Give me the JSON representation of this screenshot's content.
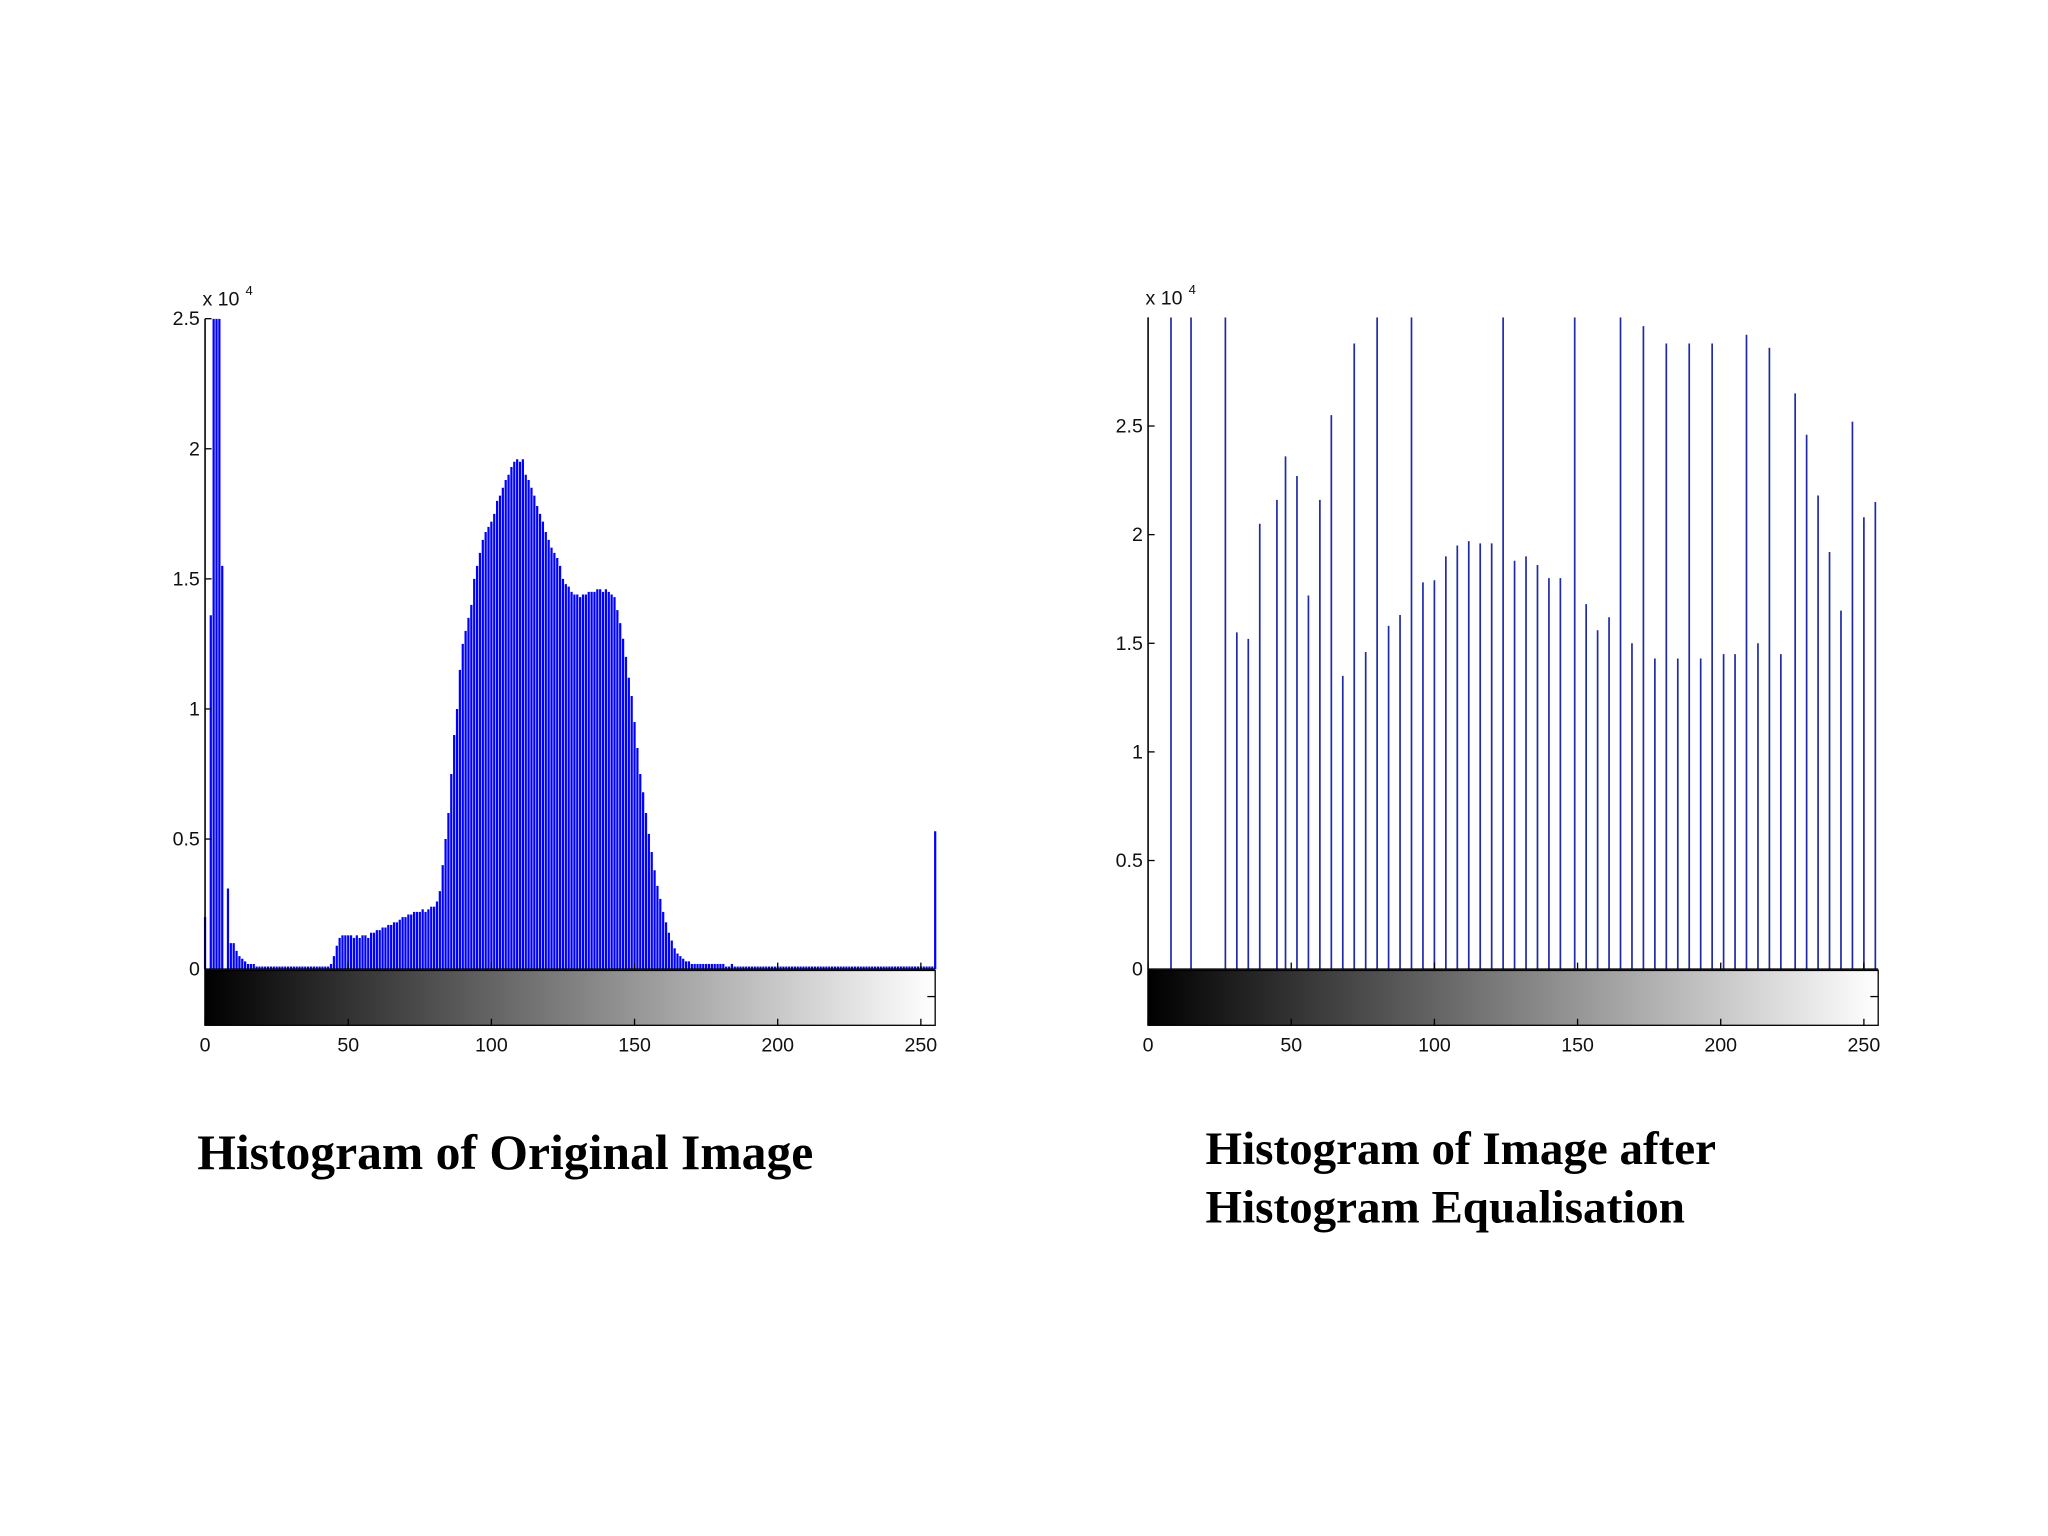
{
  "chart_data": [
    {
      "type": "stem",
      "title_lines": [
        "Histogram of Original Image"
      ],
      "y_multiplier": "x 10",
      "y_multiplier_exponent": "4",
      "color": "#0000ff",
      "xlim": [
        0,
        255
      ],
      "xticks": [
        0,
        50,
        100,
        150,
        200,
        250
      ],
      "ylim": [
        0,
        2.5
      ],
      "yticks": [
        0,
        0.5,
        1,
        1.5,
        2,
        2.5
      ],
      "grid": false,
      "x": [
        0,
        1,
        2,
        3,
        4,
        5,
        6,
        7,
        8,
        9,
        10,
        11,
        12,
        13,
        14,
        15,
        16,
        17,
        18,
        19,
        20,
        21,
        22,
        23,
        24,
        25,
        26,
        27,
        28,
        29,
        30,
        31,
        32,
        33,
        34,
        35,
        36,
        37,
        38,
        39,
        40,
        41,
        42,
        43,
        44,
        45,
        46,
        47,
        48,
        49,
        50,
        51,
        52,
        53,
        54,
        55,
        56,
        57,
        58,
        59,
        60,
        61,
        62,
        63,
        64,
        65,
        66,
        67,
        68,
        69,
        70,
        71,
        72,
        73,
        74,
        75,
        76,
        77,
        78,
        79,
        80,
        81,
        82,
        83,
        84,
        85,
        86,
        87,
        88,
        89,
        90,
        91,
        92,
        93,
        94,
        95,
        96,
        97,
        98,
        99,
        100,
        101,
        102,
        103,
        104,
        105,
        106,
        107,
        108,
        109,
        110,
        111,
        112,
        113,
        114,
        115,
        116,
        117,
        118,
        119,
        120,
        121,
        122,
        123,
        124,
        125,
        126,
        127,
        128,
        129,
        130,
        131,
        132,
        133,
        134,
        135,
        136,
        137,
        138,
        139,
        140,
        141,
        142,
        143,
        144,
        145,
        146,
        147,
        148,
        149,
        150,
        151,
        152,
        153,
        154,
        155,
        156,
        157,
        158,
        159,
        160,
        161,
        162,
        163,
        164,
        165,
        166,
        167,
        168,
        169,
        170,
        171,
        172,
        173,
        174,
        175,
        176,
        177,
        178,
        179,
        180,
        181,
        182,
        183,
        184,
        185,
        186,
        187,
        188,
        189,
        190,
        191,
        192,
        193,
        194,
        195,
        196,
        197,
        198,
        199,
        200,
        201,
        202,
        203,
        204,
        205,
        206,
        207,
        208,
        209,
        210,
        211,
        212,
        213,
        214,
        215,
        216,
        217,
        218,
        219,
        220,
        221,
        222,
        223,
        224,
        225,
        226,
        227,
        228,
        229,
        230,
        231,
        232,
        233,
        234,
        235,
        236,
        237,
        238,
        239,
        240,
        241,
        242,
        243,
        244,
        245,
        246,
        247,
        248,
        249,
        250,
        251,
        252,
        253,
        254,
        255
      ],
      "values": [
        0.2,
        0,
        1.36,
        2.5,
        2.5,
        2.5,
        1.55,
        0,
        0.31,
        0.1,
        0.1,
        0.07,
        0.05,
        0.04,
        0.03,
        0.02,
        0.02,
        0.02,
        0.01,
        0.01,
        0.01,
        0.01,
        0.01,
        0.01,
        0.01,
        0.01,
        0.01,
        0.01,
        0.01,
        0.01,
        0.01,
        0.01,
        0.01,
        0.01,
        0.01,
        0.01,
        0.01,
        0.01,
        0.01,
        0.01,
        0.01,
        0.01,
        0.01,
        0.01,
        0.02,
        0.05,
        0.09,
        0.12,
        0.13,
        0.13,
        0.13,
        0.13,
        0.12,
        0.13,
        0.12,
        0.13,
        0.13,
        0.12,
        0.14,
        0.14,
        0.15,
        0.15,
        0.16,
        0.16,
        0.17,
        0.17,
        0.18,
        0.18,
        0.19,
        0.2,
        0.2,
        0.21,
        0.21,
        0.22,
        0.22,
        0.22,
        0.23,
        0.22,
        0.23,
        0.24,
        0.24,
        0.26,
        0.3,
        0.4,
        0.5,
        0.6,
        0.75,
        0.9,
        1.0,
        1.15,
        1.25,
        1.3,
        1.35,
        1.4,
        1.5,
        1.55,
        1.6,
        1.65,
        1.68,
        1.7,
        1.72,
        1.75,
        1.8,
        1.82,
        1.85,
        1.88,
        1.9,
        1.93,
        1.95,
        1.96,
        1.95,
        1.96,
        1.9,
        1.88,
        1.85,
        1.82,
        1.78,
        1.75,
        1.72,
        1.68,
        1.65,
        1.62,
        1.6,
        1.58,
        1.55,
        1.5,
        1.48,
        1.47,
        1.45,
        1.44,
        1.44,
        1.43,
        1.44,
        1.44,
        1.45,
        1.45,
        1.45,
        1.46,
        1.46,
        1.45,
        1.46,
        1.45,
        1.44,
        1.43,
        1.38,
        1.33,
        1.27,
        1.2,
        1.12,
        1.05,
        0.95,
        0.85,
        0.75,
        0.68,
        0.6,
        0.52,
        0.45,
        0.38,
        0.32,
        0.27,
        0.22,
        0.18,
        0.14,
        0.11,
        0.08,
        0.06,
        0.05,
        0.04,
        0.03,
        0.03,
        0.02,
        0.02,
        0.02,
        0.02,
        0.02,
        0.02,
        0.02,
        0.02,
        0.02,
        0.02,
        0.02,
        0.02,
        0.01,
        0.01,
        0.02,
        0.01,
        0.01,
        0.01,
        0.01,
        0.01,
        0.01,
        0.01,
        0.01,
        0.01,
        0.01,
        0.01,
        0.01,
        0.01,
        0.01,
        0.01,
        0.01,
        0.01,
        0.01,
        0.01,
        0.01,
        0.01,
        0.01,
        0.01,
        0.01,
        0.01,
        0.01,
        0.01,
        0.01,
        0.01,
        0.01,
        0.01,
        0.01,
        0.01,
        0.01,
        0.01,
        0.01,
        0.01,
        0.01,
        0.01,
        0.01,
        0.01,
        0.01,
        0.01,
        0.01,
        0.01,
        0.01,
        0.01,
        0.01,
        0.01,
        0.01,
        0.01,
        0.01,
        0.01,
        0.01,
        0.01,
        0.01,
        0.01,
        0.01,
        0.01,
        0.01,
        0.01,
        0.01,
        0.01,
        0.01,
        0.01,
        0.01,
        0.01,
        0.01,
        0.01,
        0.01,
        0.53
      ]
    },
    {
      "type": "stem",
      "title_lines": [
        "Histogram of Image after",
        "Histogram Equalisation"
      ],
      "y_multiplier": "x 10",
      "y_multiplier_exponent": "4",
      "color": "#1f2aa8",
      "xlim": [
        0,
        255
      ],
      "xticks": [
        0,
        50,
        100,
        150,
        200,
        250
      ],
      "ylim": [
        0,
        3
      ],
      "yticks": [
        0,
        0.5,
        1,
        1.5,
        2,
        2.5
      ],
      "grid": false,
      "x": [
        8,
        15,
        27,
        31,
        35,
        39,
        45,
        48,
        52,
        56,
        60,
        64,
        68,
        72,
        76,
        80,
        84,
        88,
        92,
        96,
        100,
        104,
        108,
        112,
        116,
        120,
        124,
        128,
        132,
        136,
        140,
        144,
        149,
        153,
        157,
        161,
        165,
        169,
        173,
        177,
        181,
        185,
        189,
        193,
        197,
        201,
        205,
        209,
        213,
        217,
        221,
        226,
        230,
        234,
        238,
        242,
        246,
        250,
        254
      ],
      "values": [
        3,
        3,
        3,
        1.55,
        1.52,
        2.05,
        2.16,
        2.36,
        2.27,
        1.72,
        2.16,
        2.55,
        1.35,
        2.88,
        1.46,
        3,
        1.58,
        1.63,
        3,
        1.78,
        1.79,
        1.9,
        1.95,
        1.97,
        1.96,
        1.96,
        3,
        1.88,
        1.9,
        1.86,
        1.8,
        1.8,
        3,
        1.68,
        1.56,
        1.62,
        3,
        1.5,
        2.96,
        1.43,
        2.88,
        1.43,
        2.88,
        1.43,
        2.88,
        1.45,
        1.45,
        2.92,
        1.5,
        2.86,
        1.45,
        2.65,
        2.46,
        2.18,
        1.92,
        1.65,
        2.52,
        2.08,
        2.15
      ]
    }
  ]
}
